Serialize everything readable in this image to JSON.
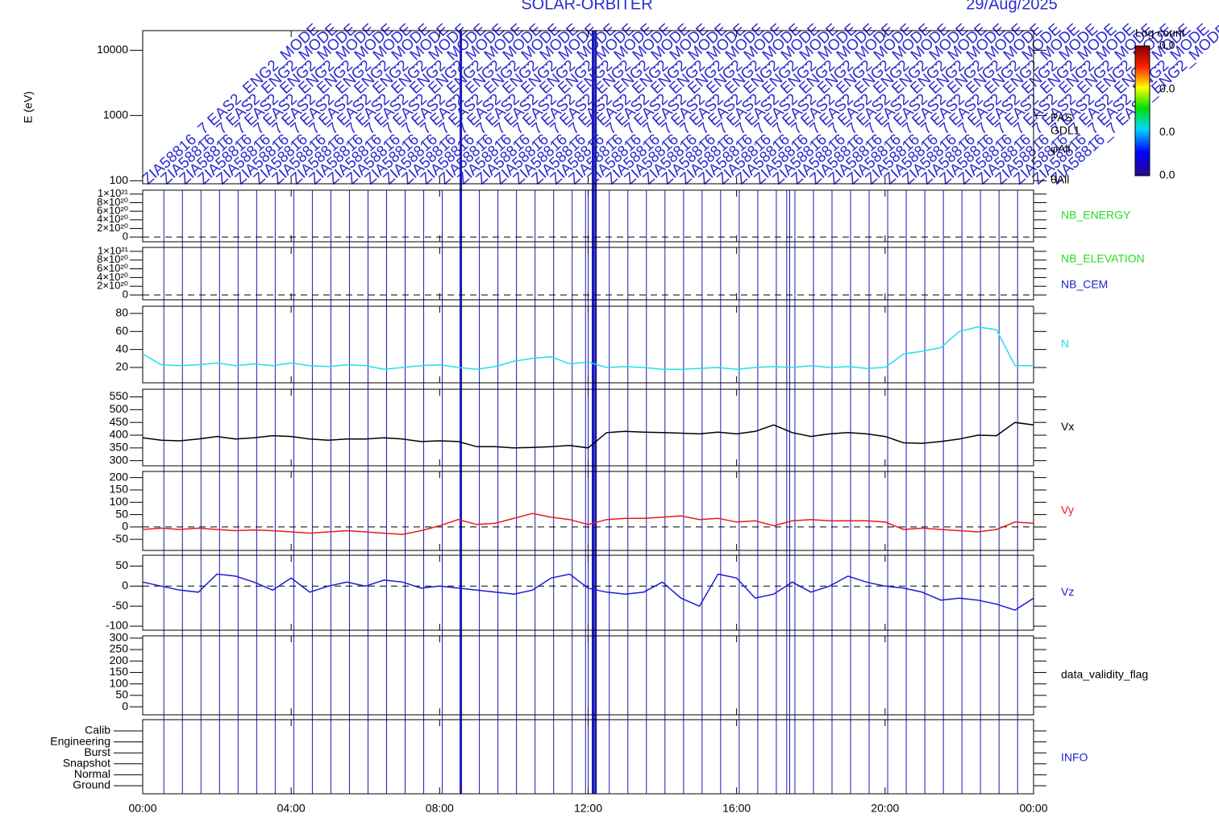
{
  "title": "SOLAR-ORBITER",
  "date": "29/Aug/2025",
  "annotation": {
    "text": "ZIA58816_7  EAS2_ENG2_MODE",
    "color": "#2b2bd6"
  },
  "markers": {
    "color": "#1a1ab4",
    "times": [
      0.57,
      1.07,
      1.57,
      2.07,
      2.57,
      3.07,
      3.57,
      4.07,
      4.57,
      5.07,
      5.57,
      6.07,
      6.57,
      7.07,
      7.57,
      8.07,
      9.07,
      9.57,
      10.07,
      10.57,
      11.07,
      11.57,
      11.93,
      12.0,
      12.57,
      13.07,
      13.57,
      14.07,
      14.57,
      15.07,
      15.57,
      16.07,
      16.57,
      17.07,
      17.35,
      17.43,
      17.57,
      18.07,
      18.57,
      19.07,
      19.57,
      20.07,
      20.57,
      21.07,
      21.57,
      22.07,
      22.57,
      23.07,
      23.57
    ],
    "thick_times": [
      8.57,
      12.13,
      12.2
    ]
  },
  "time_axis": {
    "xlim": [
      0,
      24
    ],
    "xticks": [
      {
        "value": 0,
        "label": "00:00"
      },
      {
        "value": 4,
        "label": "04:00"
      },
      {
        "value": 8,
        "label": "08:00"
      },
      {
        "value": 12,
        "label": "12:00"
      },
      {
        "value": 16,
        "label": "16:00"
      },
      {
        "value": 20,
        "label": "20:00"
      },
      {
        "value": 24,
        "label": "00:00"
      }
    ]
  },
  "chart_data": [
    {
      "type": "spectrogram",
      "ylabel": "E (eV)",
      "log": true,
      "ylim": [
        90,
        20000
      ],
      "yticks": [
        100,
        1000,
        10000
      ],
      "labels": [
        "PAS",
        "GDL1",
        "φAll",
        "θAll"
      ],
      "label_colors": [
        "#000000",
        "#000000",
        "#000000",
        "#000000"
      ],
      "colorbar": {
        "title": "Log count",
        "labels": [
          "0.0",
          "0.0",
          "0.0",
          "0.0"
        ]
      }
    },
    {
      "type": "line",
      "ylim": [
        -1.1e+20,
        1.09e+21
      ],
      "yticks": [
        {
          "value": 0,
          "label": "0"
        },
        {
          "value": 2e+20,
          "label": "2×10²⁰"
        },
        {
          "value": 4e+20,
          "label": "4×10²⁰"
        },
        {
          "value": 6e+20,
          "label": "6×10²⁰"
        },
        {
          "value": 8e+20,
          "label": "8×10²⁰"
        },
        {
          "value": 1e+21,
          "label": "1×10²¹"
        }
      ],
      "ref_line": 0,
      "labels": [
        "NB_ENERGY"
      ],
      "label_colors": [
        "#22dd22"
      ]
    },
    {
      "type": "line",
      "ylim": [
        -1.1e+20,
        1.09e+21
      ],
      "yticks": [
        {
          "value": 0,
          "label": "0"
        },
        {
          "value": 2e+20,
          "label": "2×10²⁰"
        },
        {
          "value": 4e+20,
          "label": "4×10²⁰"
        },
        {
          "value": 6e+20,
          "label": "6×10²⁰"
        },
        {
          "value": 8e+20,
          "label": "8×10²⁰"
        },
        {
          "value": 1e+21,
          "label": "1×10²¹"
        }
      ],
      "ref_line": 0,
      "labels": [
        "NB_ELEVATION",
        "NB_CEM"
      ],
      "label_colors": [
        "#22dd22",
        "#2222cc"
      ]
    },
    {
      "type": "line",
      "ylim": [
        3,
        88
      ],
      "yticks": [
        20,
        40,
        60,
        80
      ],
      "x": [
        0,
        0.5,
        1,
        1.5,
        2,
        2.5,
        3,
        3.5,
        4,
        4.5,
        5,
        5.5,
        6,
        6.5,
        7,
        7.5,
        8,
        8.5,
        9,
        9.5,
        10,
        10.5,
        11,
        11.5,
        12,
        12.5,
        13,
        13.5,
        14,
        14.5,
        15,
        15.5,
        16,
        16.5,
        17,
        17.5,
        18,
        18.5,
        19,
        19.5,
        20,
        20.5,
        21,
        21.5,
        22,
        22.5,
        23,
        23.5,
        24
      ],
      "series": [
        {
          "name": "N",
          "color": "#22e0e8",
          "values": [
            35,
            23,
            22,
            23,
            25,
            22,
            24,
            22,
            25,
            22,
            21,
            23,
            22,
            18,
            20,
            22,
            23,
            20,
            18,
            21,
            27,
            30,
            32,
            24,
            26,
            20,
            21,
            20,
            18,
            18,
            19,
            20,
            18,
            20,
            21,
            20,
            22,
            20,
            21,
            19,
            20,
            35,
            38,
            42,
            60,
            65,
            62,
            22,
            22
          ]
        }
      ]
    },
    {
      "type": "line",
      "ylim": [
        280,
        580
      ],
      "yticks": [
        300,
        350,
        400,
        450,
        500,
        550
      ],
      "x": [
        0,
        0.5,
        1,
        1.5,
        2,
        2.5,
        3,
        3.5,
        4,
        4.5,
        5,
        5.5,
        6,
        6.5,
        7,
        7.5,
        8,
        8.5,
        9,
        9.5,
        10,
        10.5,
        11,
        11.5,
        12,
        12.5,
        13,
        13.5,
        14,
        14.5,
        15,
        15.5,
        16,
        16.5,
        17,
        17.5,
        18,
        18.5,
        19,
        19.5,
        20,
        20.5,
        21,
        21.5,
        22,
        22.5,
        23,
        23.5,
        24
      ],
      "series": [
        {
          "name": "Vx",
          "color": "#000000",
          "values": [
            390,
            380,
            378,
            385,
            395,
            385,
            390,
            398,
            395,
            385,
            380,
            385,
            385,
            390,
            385,
            375,
            378,
            375,
            355,
            355,
            350,
            352,
            355,
            360,
            350,
            410,
            415,
            412,
            410,
            408,
            405,
            412,
            405,
            415,
            440,
            410,
            395,
            405,
            410,
            405,
            395,
            370,
            368,
            375,
            385,
            400,
            398,
            450,
            440
          ]
        }
      ]
    },
    {
      "type": "line",
      "ylim": [
        -95,
        225
      ],
      "yticks": [
        -50,
        0,
        50,
        100,
        150,
        200
      ],
      "ref_line": 0,
      "x": [
        0,
        0.5,
        1,
        1.5,
        2,
        2.5,
        3,
        3.5,
        4,
        4.5,
        5,
        5.5,
        6,
        6.5,
        7,
        7.5,
        8,
        8.5,
        9,
        9.5,
        10,
        10.5,
        11,
        11.5,
        12,
        12.5,
        13,
        13.5,
        14,
        14.5,
        15,
        15.5,
        16,
        16.5,
        17,
        17.5,
        18,
        18.5,
        19,
        19.5,
        20,
        20.5,
        21,
        21.5,
        22,
        22.5,
        23,
        23.5,
        24
      ],
      "series": [
        {
          "name": "Vy",
          "color": "#e81a1a",
          "values": [
            -10,
            -5,
            -10,
            -5,
            -10,
            -15,
            -12,
            -15,
            -20,
            -25,
            -20,
            -15,
            -20,
            -25,
            -30,
            -15,
            5,
            30,
            10,
            15,
            35,
            55,
            40,
            30,
            10,
            30,
            35,
            35,
            40,
            45,
            30,
            35,
            20,
            25,
            5,
            25,
            30,
            25,
            25,
            25,
            20,
            -10,
            -5,
            -10,
            -15,
            -20,
            -10,
            20,
            15
          ]
        }
      ]
    },
    {
      "type": "line",
      "ylim": [
        -110,
        77
      ],
      "yticks": [
        -100,
        -50,
        0,
        50
      ],
      "ref_line": 0,
      "x": [
        0,
        0.5,
        1,
        1.5,
        2,
        2.5,
        3,
        3.5,
        4,
        4.5,
        5,
        5.5,
        6,
        6.5,
        7,
        7.5,
        8,
        8.5,
        9,
        9.5,
        10,
        10.5,
        11,
        11.5,
        12,
        12.5,
        13,
        13.5,
        14,
        14.5,
        15,
        15.5,
        16,
        16.5,
        17,
        17.5,
        18,
        18.5,
        19,
        19.5,
        20,
        20.5,
        21,
        21.5,
        22,
        22.5,
        23,
        23.5,
        24
      ],
      "series": [
        {
          "name": "Vz",
          "color": "#1a1ad8",
          "values": [
            10,
            0,
            -10,
            -15,
            30,
            25,
            10,
            -10,
            20,
            -15,
            0,
            10,
            0,
            15,
            10,
            -5,
            0,
            -5,
            -10,
            -15,
            -20,
            -10,
            20,
            30,
            -5,
            -15,
            -20,
            -15,
            10,
            -30,
            -50,
            30,
            20,
            -30,
            -20,
            10,
            -15,
            0,
            25,
            10,
            0,
            -5,
            -15,
            -35,
            -30,
            -35,
            -45,
            -60,
            -30
          ]
        }
      ]
    },
    {
      "type": "line",
      "ylim": [
        -35,
        310
      ],
      "yticks": [
        0,
        50,
        100,
        150,
        200,
        250,
        300
      ],
      "labels": [
        "data_validity_flag"
      ],
      "label_colors": [
        "#000000"
      ]
    },
    {
      "type": "category",
      "categories": [
        "Calib",
        "Engineering",
        "Burst",
        "Snapshot",
        "Normal",
        "Ground"
      ],
      "labels": [
        "INFO"
      ],
      "label_colors": [
        "#2222cc"
      ]
    }
  ]
}
